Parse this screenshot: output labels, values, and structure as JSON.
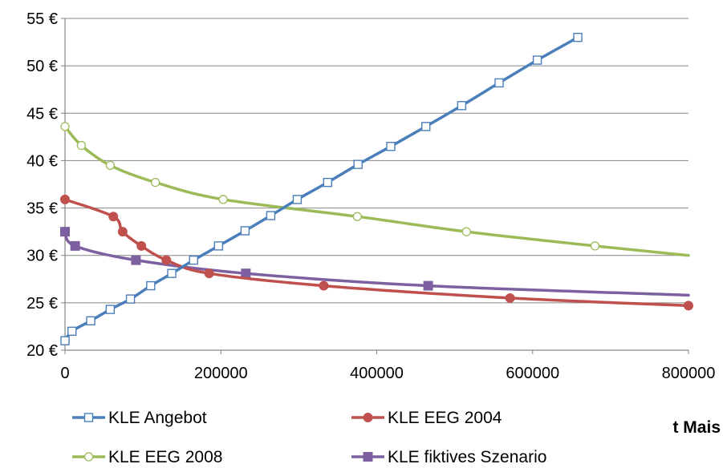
{
  "chart_data": {
    "type": "line",
    "xlabel": "t Mais",
    "xlim": [
      0,
      800000
    ],
    "ylim": [
      20,
      55
    ],
    "x_ticks": [
      {
        "value": 0,
        "label": "0"
      },
      {
        "value": 200000,
        "label": "200000"
      },
      {
        "value": 400000,
        "label": "400000"
      },
      {
        "value": 600000,
        "label": "600000"
      },
      {
        "value": 800000,
        "label": "800000"
      }
    ],
    "y_ticks": [
      {
        "value": 20,
        "label": "20 €"
      },
      {
        "value": 25,
        "label": "25 €"
      },
      {
        "value": 30,
        "label": "30 €"
      },
      {
        "value": 35,
        "label": "35 €"
      },
      {
        "value": 40,
        "label": "40 €"
      },
      {
        "value": 45,
        "label": "45 €"
      },
      {
        "value": 50,
        "label": "50 €"
      },
      {
        "value": 55,
        "label": "55 €"
      }
    ],
    "grid": "horizontal",
    "legend_position": "bottom",
    "series": [
      {
        "name": "KLE Angebot",
        "color": "#4a7ebb",
        "marker": "open-square",
        "points": [
          [
            0,
            21.0
          ],
          [
            9000,
            22.0
          ],
          [
            33000,
            23.1
          ],
          [
            58000,
            24.3
          ],
          [
            84000,
            25.4
          ],
          [
            110000,
            26.8
          ],
          [
            137000,
            28.1
          ],
          [
            165000,
            29.5
          ],
          [
            197000,
            31.0
          ],
          [
            231000,
            32.6
          ],
          [
            264000,
            34.2
          ],
          [
            298000,
            35.9
          ],
          [
            337000,
            37.7
          ],
          [
            376000,
            39.6
          ],
          [
            418000,
            41.5
          ],
          [
            463000,
            43.6
          ],
          [
            509000,
            45.8
          ],
          [
            557000,
            48.2
          ],
          [
            606000,
            50.6
          ],
          [
            658000,
            53.0
          ]
        ]
      },
      {
        "name": "KLE EEG 2004",
        "color": "#c0504d",
        "marker": "filled-circle",
        "points": [
          [
            0,
            35.9
          ],
          [
            62000,
            34.1
          ],
          [
            74000,
            32.5
          ],
          [
            98000,
            31.0
          ],
          [
            130000,
            29.5
          ],
          [
            185000,
            28.1
          ],
          [
            332000,
            26.8
          ],
          [
            571000,
            25.5
          ],
          [
            800000,
            24.7
          ]
        ]
      },
      {
        "name": "KLE EEG 2008",
        "color": "#9bbb59",
        "marker": "open-circle",
        "points": [
          [
            0,
            43.6
          ],
          [
            21000,
            41.6
          ],
          [
            58000,
            39.5
          ],
          [
            116000,
            37.7
          ],
          [
            203000,
            35.9
          ],
          [
            375000,
            34.1
          ],
          [
            515000,
            32.5
          ],
          [
            680000,
            31.0
          ],
          [
            800000,
            30.0
          ]
        ]
      },
      {
        "name": "KLE fiktives Szenario",
        "color": "#7d60a0",
        "marker": "filled-square",
        "points": [
          [
            0,
            32.5
          ],
          [
            13000,
            31.0
          ],
          [
            91000,
            29.5
          ],
          [
            232000,
            28.1
          ],
          [
            466000,
            26.8
          ],
          [
            800000,
            25.8
          ]
        ]
      }
    ]
  }
}
